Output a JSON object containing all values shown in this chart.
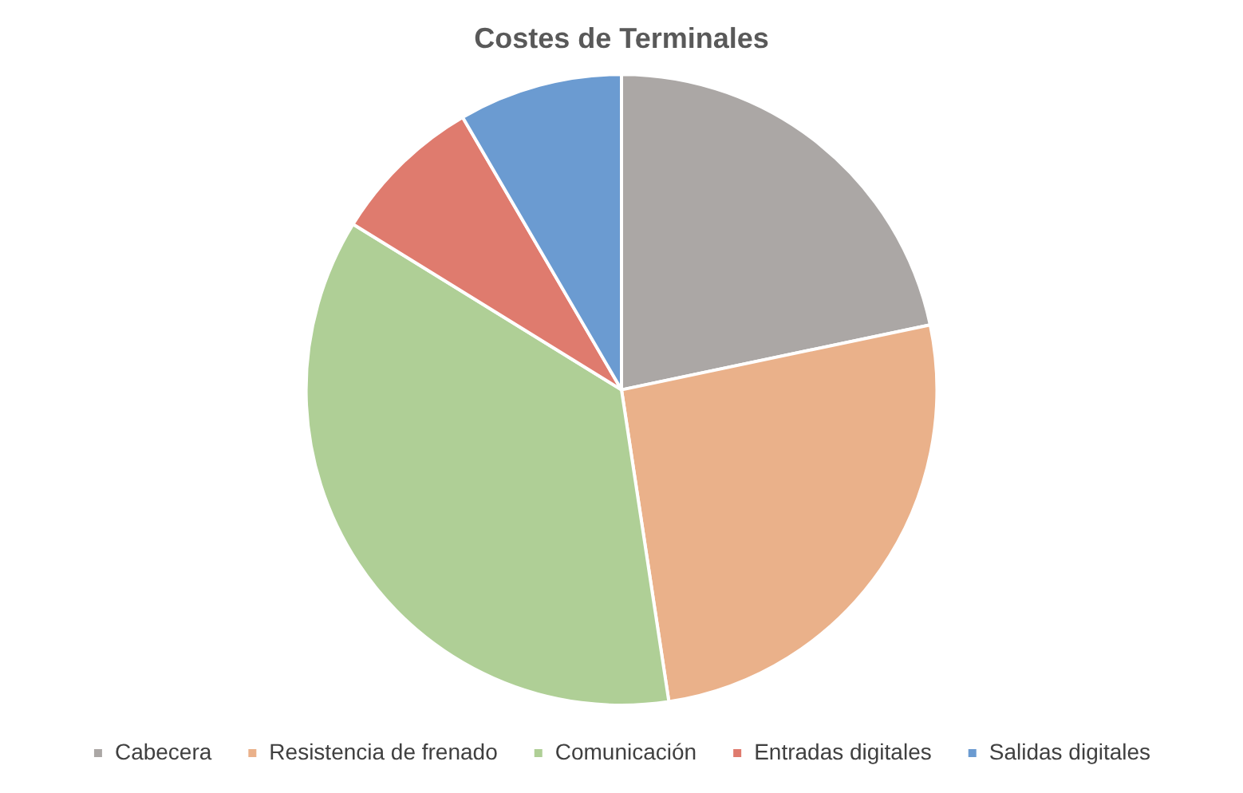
{
  "chart_data": {
    "type": "pie",
    "title": "Costes de Terminales",
    "categories": [
      "Cabecera",
      "Resistencia de frenado",
      "Comunicación",
      "Entradas digitales",
      "Salidas digitales"
    ],
    "values": [
      21.7,
      25.9,
      36.2,
      7.8,
      8.4
    ],
    "colors": [
      "#aba7a5",
      "#eab18a",
      "#afcf96",
      "#df7b6e",
      "#6b9bd1"
    ],
    "legend": "bottom"
  }
}
